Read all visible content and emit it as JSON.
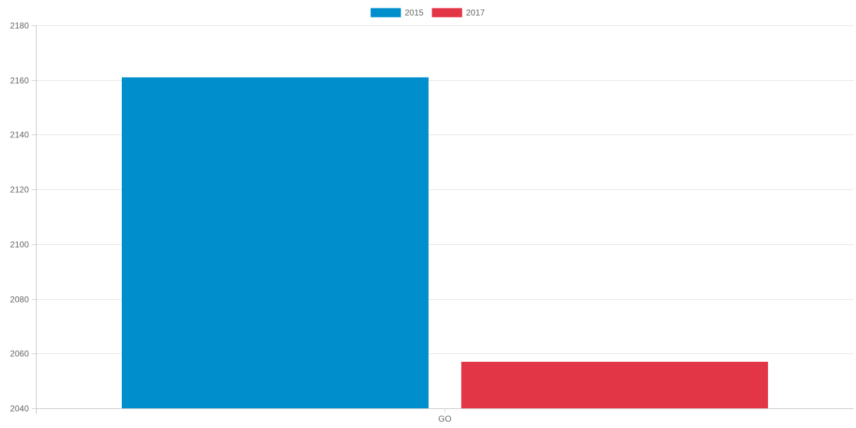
{
  "chart_data": {
    "type": "bar",
    "title": "",
    "xlabel": "",
    "ylabel": "",
    "categories": [
      "GO"
    ],
    "series": [
      {
        "name": "2015",
        "values": [
          2161
        ],
        "color": "#008ecd"
      },
      {
        "name": "2017",
        "values": [
          2057
        ],
        "color": "#e23647"
      }
    ],
    "ylim": [
      2040,
      2180
    ],
    "y_ticks": [
      2040,
      2060,
      2080,
      2100,
      2120,
      2140,
      2160,
      2180
    ],
    "grid": true,
    "legend_position": "top-center"
  }
}
